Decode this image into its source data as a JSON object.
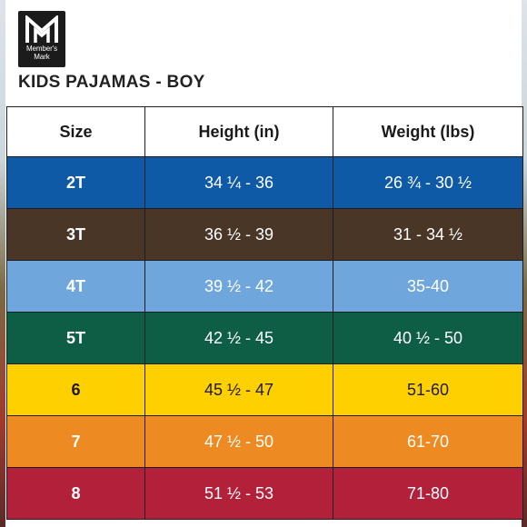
{
  "brand": {
    "logo_text": "Member's Mark"
  },
  "title": "KIDS PAJAMAS - BOY",
  "table": {
    "headers": [
      "Size",
      "Height (in)",
      "Weight (lbs)"
    ],
    "rows": [
      {
        "size": "2T",
        "height": "34 ¼ - 36",
        "weight": "26 ¾ - 30 ½",
        "bg": "#0e5aa7",
        "fg": "#ffffff"
      },
      {
        "size": "3T",
        "height": "36 ½ - 39",
        "weight": "31 - 34 ½",
        "bg": "#4a3626",
        "fg": "#ffffff"
      },
      {
        "size": "4T",
        "height": "39 ½ - 42",
        "weight": "35-40",
        "bg": "#6fa7dc",
        "fg": "#ffffff"
      },
      {
        "size": "5T",
        "height": "42 ½ - 45",
        "weight": "40 ½ - 50",
        "bg": "#0d5e45",
        "fg": "#ffffff"
      },
      {
        "size": "6",
        "height": "45 ½ - 47",
        "weight": "51-60",
        "bg": "#ffd000",
        "fg": "#1b1b1b"
      },
      {
        "size": "7",
        "height": "47 ½ - 50",
        "weight": "61-70",
        "bg": "#ee8a22",
        "fg": "#ffffff"
      },
      {
        "size": "8",
        "height": "51 ½ - 53",
        "weight": "71-80",
        "bg": "#b3203a",
        "fg": "#ffffff"
      }
    ]
  }
}
